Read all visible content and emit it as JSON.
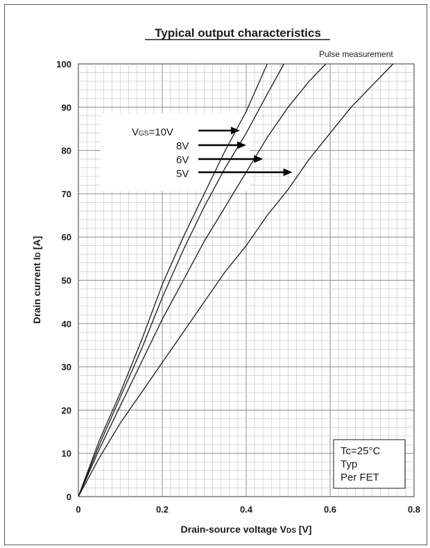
{
  "chart_data": {
    "type": "line",
    "title": "Typical output characteristics",
    "note": "Pulse measurement",
    "xlabel": {
      "main": "Drain-source voltage  V",
      "sub": "DS",
      "unit": "  [V]"
    },
    "ylabel": {
      "main": "Drain current   I",
      "sub": "D",
      "unit": "  [A]"
    },
    "xlim": [
      0,
      0.8
    ],
    "ylim": [
      0,
      100
    ],
    "x_ticks": [
      0,
      0.2,
      0.4,
      0.6,
      0.8
    ],
    "x_tick_labels": [
      "0",
      "0.2",
      "0.4",
      "0.6",
      "0.8"
    ],
    "y_ticks": [
      0,
      10,
      20,
      30,
      40,
      50,
      60,
      70,
      80,
      90,
      100
    ],
    "y_tick_labels": [
      "0",
      "10",
      "20",
      "30",
      "40",
      "50",
      "60",
      "70",
      "80",
      "90",
      "100"
    ],
    "grid": true,
    "series": [
      {
        "name": "10V",
        "x": [
          0,
          0.05,
          0.1,
          0.15,
          0.2,
          0.25,
          0.3,
          0.35,
          0.4,
          0.45
        ],
        "y": [
          0,
          13,
          24,
          36,
          49,
          60,
          70,
          80,
          89,
          100
        ]
      },
      {
        "name": "8V",
        "x": [
          0,
          0.05,
          0.1,
          0.15,
          0.2,
          0.25,
          0.3,
          0.35,
          0.4,
          0.45,
          0.49
        ],
        "y": [
          0,
          12,
          23,
          34,
          46,
          57,
          67,
          76,
          84,
          93,
          100
        ]
      },
      {
        "name": "6V",
        "x": [
          0,
          0.05,
          0.1,
          0.15,
          0.2,
          0.25,
          0.3,
          0.35,
          0.4,
          0.45,
          0.5,
          0.55,
          0.59
        ],
        "y": [
          0,
          11,
          21,
          31,
          41,
          50,
          59,
          67,
          75,
          83,
          90,
          96,
          100
        ]
      },
      {
        "name": "5V",
        "x": [
          0,
          0.05,
          0.1,
          0.15,
          0.2,
          0.25,
          0.3,
          0.35,
          0.4,
          0.45,
          0.5,
          0.55,
          0.6,
          0.65,
          0.7,
          0.75
        ],
        "y": [
          0,
          9,
          17,
          24,
          31,
          38,
          45,
          52,
          58,
          65,
          71,
          78,
          84,
          90,
          95,
          100
        ]
      }
    ],
    "curve_labels": [
      {
        "text": "V",
        "sub": "GS",
        "after": "=10V",
        "series": "10V",
        "arrow_to": {
          "x": 0.385,
          "y": 84
        }
      },
      {
        "text": "8V",
        "series": "8V",
        "arrow_to": {
          "x": 0.4,
          "y": 81.5
        }
      },
      {
        "text": "6V",
        "series": "6V",
        "arrow_to": {
          "x": 0.44,
          "y": 78
        }
      },
      {
        "text": "5V",
        "series": "5V",
        "arrow_to": {
          "x": 0.51,
          "y": 75
        }
      }
    ],
    "conditions": {
      "tc": "Tc=25°C",
      "typ": "Typ",
      "per": "Per FET"
    }
  }
}
